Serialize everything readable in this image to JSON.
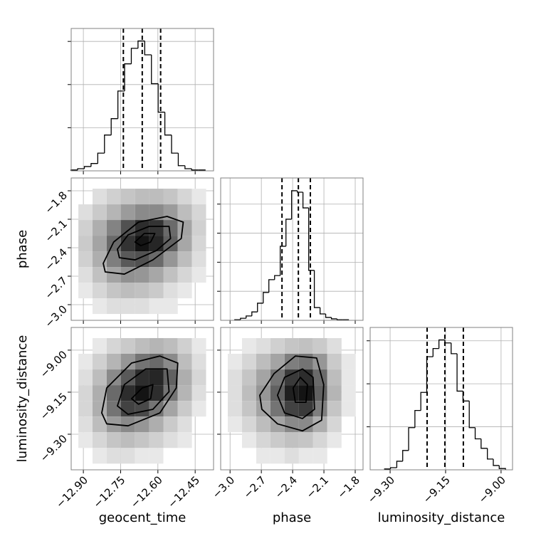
{
  "chart_data": [
    {
      "type": "histogram",
      "xlim": [
        -12.949,
        -12.376
      ],
      "ylim": [
        0,
        330
      ],
      "xticks": [
        -12.9,
        -12.75,
        -12.6,
        -12.45
      ],
      "yticks": [
        100,
        200,
        300
      ],
      "grid": true,
      "color": "#000000",
      "bins": [
        -12.95,
        -12.923,
        -12.896,
        -12.869,
        -12.842,
        -12.815,
        -12.788,
        -12.761,
        -12.734,
        -12.707,
        -12.68,
        -12.653,
        -12.626,
        -12.599,
        -12.572,
        -12.545,
        -12.518,
        -12.491,
        -12.464,
        -12.437,
        -12.41
      ],
      "values": [
        2,
        5,
        10,
        17,
        41,
        83,
        121,
        185,
        248,
        284,
        301,
        269,
        202,
        136,
        83,
        41,
        12,
        5,
        2,
        2
      ],
      "quantiles": [
        -12.739,
        -12.663,
        -12.589
      ]
    },
    {
      "type": "scatter",
      "ylabel": "phase",
      "xlim": [
        -12.949,
        -12.376
      ],
      "ylim": [
        -3.165,
        -1.665
      ],
      "grid": true,
      "color": "#000000",
      "xticks": [
        -12.9,
        -12.75,
        -12.6,
        -12.45
      ],
      "yticks": [
        {
          "value": -1.8,
          "label": "−1.8"
        },
        {
          "value": -2.1,
          "label": "−2.1"
        },
        {
          "value": -2.4,
          "label": "−2.4"
        },
        {
          "value": -2.7,
          "label": "−2.7"
        },
        {
          "value": -3.0,
          "label": "−3.0"
        }
      ],
      "density": {
        "x_edges": [
          -12.92,
          -12.863,
          -12.806,
          -12.749,
          -12.692,
          -12.635,
          -12.578,
          -12.52,
          -12.463,
          -12.406
        ],
        "y_edges": [
          -1.778,
          -1.943,
          -2.108,
          -2.273,
          -2.438,
          -2.603,
          -2.768,
          -2.933,
          -3.098
        ],
        "counts": [
          [
            0,
            2,
            4,
            6,
            8,
            8,
            6,
            3,
            1
          ],
          [
            2,
            5,
            10,
            18,
            25,
            25,
            18,
            8,
            3
          ],
          [
            4,
            12,
            28,
            55,
            80,
            75,
            40,
            15,
            4
          ],
          [
            5,
            15,
            40,
            75,
            100,
            85,
            45,
            14,
            3
          ],
          [
            4,
            12,
            30,
            50,
            55,
            40,
            20,
            8,
            2
          ],
          [
            2,
            7,
            15,
            22,
            20,
            14,
            7,
            3,
            1
          ],
          [
            1,
            3,
            6,
            8,
            7,
            5,
            2,
            1,
            0
          ],
          [
            0,
            1,
            2,
            2,
            2,
            1,
            1,
            0,
            0
          ]
        ]
      },
      "contours": [
        {
          "x": [
            -12.82,
            -12.778,
            -12.678,
            -12.563,
            -12.498,
            -12.506,
            -12.62,
            -12.735,
            -12.812
          ],
          "y": [
            -2.565,
            -2.34,
            -2.13,
            -2.07,
            -2.13,
            -2.303,
            -2.528,
            -2.678,
            -2.655
          ]
        },
        {
          "x": [
            -12.763,
            -12.72,
            -12.635,
            -12.555,
            -12.549,
            -12.606,
            -12.692,
            -12.755
          ],
          "y": [
            -2.415,
            -2.265,
            -2.175,
            -2.175,
            -2.303,
            -2.43,
            -2.528,
            -2.505
          ]
        },
        {
          "x": [
            -12.692,
            -12.655,
            -12.612,
            -12.629,
            -12.669
          ],
          "y": [
            -2.34,
            -2.25,
            -2.25,
            -2.34,
            -2.378
          ]
        }
      ]
    },
    {
      "type": "histogram",
      "xlim": [
        -3.09,
        -1.725
      ],
      "ylim": [
        0,
        490
      ],
      "xticks": [
        -3.0,
        -2.7,
        -2.4,
        -2.1,
        -1.8
      ],
      "yticks": [
        100,
        200,
        300,
        400
      ],
      "grid": true,
      "color": "#000000",
      "bins": [
        -2.955,
        -2.9,
        -2.846,
        -2.791,
        -2.737,
        -2.682,
        -2.628,
        -2.573,
        -2.519,
        -2.464,
        -2.41,
        -2.355,
        -2.301,
        -2.246,
        -2.192,
        -2.137,
        -2.083,
        -2.028,
        -1.974,
        -1.919,
        -1.865
      ],
      "values": [
        2,
        7,
        15,
        29,
        59,
        96,
        140,
        154,
        255,
        348,
        446,
        441,
        387,
        172,
        44,
        22,
        10,
        5,
        2,
        2
      ],
      "quantiles": [
        -2.502,
        -2.345,
        -2.23
      ]
    },
    {
      "type": "scatter",
      "xlabel": "geocent_time",
      "ylabel": "luminosity_distance",
      "xlim": [
        -12.949,
        -12.376
      ],
      "ylim": [
        -9.427,
        -8.919
      ],
      "grid": true,
      "color": "#000000",
      "xticks": [
        {
          "value": -12.9,
          "label": "−12.90"
        },
        {
          "value": -12.75,
          "label": "−12.75"
        },
        {
          "value": -12.6,
          "label": "−12.60"
        },
        {
          "value": -12.45,
          "label": "−12.45"
        }
      ],
      "yticks": [
        {
          "value": -9.0,
          "label": "−9.00"
        },
        {
          "value": -9.15,
          "label": "−9.15"
        },
        {
          "value": -9.3,
          "label": "−9.30"
        }
      ],
      "density": {
        "x_edges": [
          -12.92,
          -12.863,
          -12.806,
          -12.749,
          -12.692,
          -12.635,
          -12.578,
          -12.52,
          -12.463,
          -12.406
        ],
        "y_edges": [
          -8.957,
          -9.013,
          -9.069,
          -9.125,
          -9.181,
          -9.237,
          -9.293,
          -9.349,
          -9.405
        ],
        "counts": [
          [
            0,
            1,
            3,
            5,
            8,
            10,
            8,
            4,
            1
          ],
          [
            1,
            4,
            10,
            20,
            35,
            40,
            25,
            8,
            2
          ],
          [
            2,
            8,
            25,
            50,
            80,
            85,
            45,
            12,
            3
          ],
          [
            3,
            12,
            40,
            80,
            100,
            80,
            35,
            10,
            2
          ],
          [
            3,
            12,
            35,
            65,
            60,
            35,
            15,
            5,
            1
          ],
          [
            2,
            8,
            18,
            25,
            20,
            12,
            5,
            2,
            0
          ],
          [
            1,
            3,
            6,
            8,
            6,
            4,
            2,
            1,
            0
          ],
          [
            0,
            1,
            2,
            2,
            1,
            1,
            0,
            0,
            0
          ]
        ]
      },
      "contours": [
        {
          "x": [
            -12.826,
            -12.806,
            -12.706,
            -12.592,
            -12.52,
            -12.526,
            -12.592,
            -12.72,
            -12.806
          ],
          "y": [
            -9.224,
            -9.135,
            -9.046,
            -9.021,
            -9.046,
            -9.135,
            -9.224,
            -9.27,
            -9.263
          ]
        },
        {
          "x": [
            -12.763,
            -12.735,
            -12.649,
            -12.563,
            -12.555,
            -12.62,
            -12.72
          ],
          "y": [
            -9.199,
            -9.123,
            -9.067,
            -9.067,
            -9.148,
            -9.211,
            -9.229
          ]
        },
        {
          "x": [
            -12.706,
            -12.663,
            -12.62,
            -12.629,
            -12.678
          ],
          "y": [
            -9.173,
            -9.135,
            -9.123,
            -9.173,
            -9.193
          ]
        }
      ]
    },
    {
      "type": "scatter",
      "xlabel": "phase",
      "xlim": [
        -3.09,
        -1.725
      ],
      "ylim": [
        -9.427,
        -8.919
      ],
      "grid": true,
      "color": "#000000",
      "xticks": [
        {
          "value": -3.0,
          "label": "−3.0"
        },
        {
          "value": -2.7,
          "label": "−2.7"
        },
        {
          "value": -2.4,
          "label": "−2.4"
        },
        {
          "value": -2.1,
          "label": "−2.1"
        },
        {
          "value": -1.8,
          "label": "−1.8"
        }
      ],
      "yticks": [
        -9.0,
        -9.15,
        -9.3
      ],
      "density": {
        "x_edges": [
          -3.022,
          -2.885,
          -2.749,
          -2.613,
          -2.477,
          -2.34,
          -2.204,
          -2.068,
          -1.931,
          -1.795
        ],
        "y_edges": [
          -8.957,
          -9.013,
          -9.069,
          -9.125,
          -9.181,
          -9.237,
          -9.293,
          -9.349,
          -9.405
        ],
        "counts": [
          [
            0,
            1,
            2,
            4,
            6,
            7,
            5,
            2,
            0
          ],
          [
            1,
            3,
            8,
            15,
            30,
            35,
            20,
            5,
            1
          ],
          [
            2,
            6,
            15,
            35,
            70,
            80,
            40,
            8,
            1
          ],
          [
            2,
            8,
            20,
            45,
            90,
            100,
            45,
            10,
            1
          ],
          [
            2,
            6,
            15,
            35,
            65,
            70,
            30,
            6,
            1
          ],
          [
            1,
            3,
            8,
            15,
            25,
            25,
            12,
            3,
            0
          ],
          [
            0,
            1,
            3,
            5,
            7,
            6,
            3,
            1,
            0
          ],
          [
            0,
            0,
            1,
            1,
            2,
            1,
            1,
            0,
            0
          ]
        ]
      },
      "contours": [
        {
          "x": [
            -2.715,
            -2.579,
            -2.374,
            -2.17,
            -2.102,
            -2.122,
            -2.306,
            -2.545,
            -2.695
          ],
          "y": [
            -9.161,
            -9.084,
            -9.021,
            -9.028,
            -9.123,
            -9.25,
            -9.288,
            -9.263,
            -9.211
          ]
        },
        {
          "x": [
            -2.545,
            -2.477,
            -2.306,
            -2.204,
            -2.19,
            -2.306,
            -2.477
          ],
          "y": [
            -9.161,
            -9.097,
            -9.067,
            -9.097,
            -9.211,
            -9.244,
            -9.224
          ]
        },
        {
          "x": [
            -2.395,
            -2.326,
            -2.258,
            -2.272,
            -2.374
          ],
          "y": [
            -9.135,
            -9.097,
            -9.123,
            -9.186,
            -9.186
          ]
        }
      ]
    },
    {
      "type": "histogram",
      "xlabel": "luminosity_distance",
      "xlim": [
        -9.354,
        -8.969
      ],
      "ylim": [
        0,
        331
      ],
      "yticks": [
        100,
        200,
        300
      ],
      "grid": true,
      "color": "#000000",
      "xticks": [
        {
          "value": -9.3,
          "label": "−9.30"
        },
        {
          "value": -9.15,
          "label": "−9.15"
        },
        {
          "value": -9.0,
          "label": "−9.00"
        }
      ],
      "bins": [
        -9.315,
        -9.299,
        -9.282,
        -9.266,
        -9.25,
        -9.233,
        -9.217,
        -9.201,
        -9.184,
        -9.168,
        -9.152,
        -9.135,
        -9.119,
        -9.103,
        -9.086,
        -9.07,
        -9.054,
        -9.037,
        -9.021,
        -9.005,
        -8.988
      ],
      "values": [
        2,
        5,
        20,
        45,
        98,
        138,
        180,
        263,
        282,
        302,
        295,
        270,
        183,
        160,
        98,
        72,
        50,
        25,
        10,
        3
      ],
      "quantiles": [
        -9.2,
        -9.152,
        -9.102
      ]
    }
  ]
}
